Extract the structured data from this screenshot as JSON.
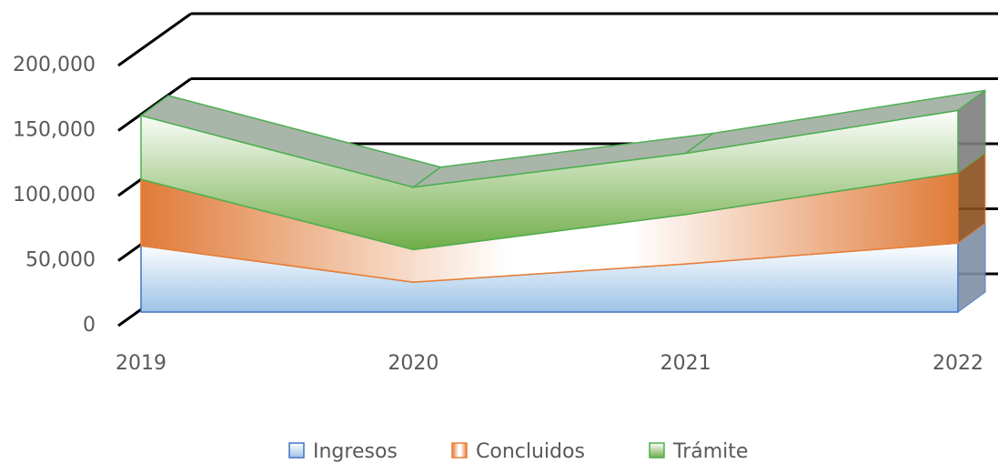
{
  "chart_data": {
    "type": "area3d",
    "categories": [
      "2019",
      "2020",
      "2021",
      "2022"
    ],
    "series": [
      {
        "name": "Ingresos",
        "color": "#9dc3e6",
        "values": [
          51000,
          23000,
          37000,
          53000
        ]
      },
      {
        "name": "Concluidos",
        "color": "#e07b39",
        "values": [
          51000,
          25000,
          38000,
          54000
        ]
      },
      {
        "name": "Trámite",
        "color": "#70ad47",
        "values": [
          49000,
          48000,
          47000,
          48000
        ]
      }
    ],
    "stacked": true,
    "ylim": [
      0,
      200000
    ],
    "yticks": [
      0,
      {
        "value": 50000,
        "label": "50,000"
      },
      {
        "value": 100000,
        "label": "100,000"
      },
      {
        "value": 150000,
        "label": "150,000"
      },
      {
        "value": 200000,
        "label": "200,000"
      }
    ],
    "grid": true,
    "legend": "bottom"
  }
}
